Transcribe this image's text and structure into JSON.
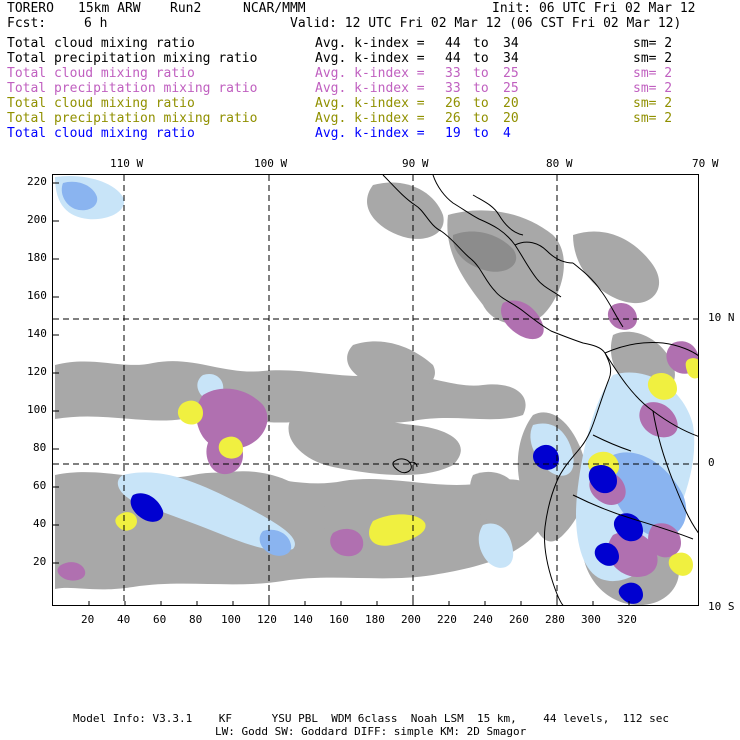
{
  "header": {
    "model": "TORERO",
    "resolution": "15km ARW",
    "run": "Run2",
    "org": "NCAR/MMM",
    "init": "Init: 06 UTC Fri 02 Mar 12",
    "fcst_label": "Fcst:",
    "fcst_value": "6 h",
    "valid": "Valid: 12 UTC Fri 02 Mar 12 (06 CST Fri 02 Mar 12)"
  },
  "legend": [
    {
      "field": "Total cloud mixing ratio",
      "index": "Avg. k-index =",
      "from": "44",
      "to_word": "to",
      "to": "34",
      "sm": "sm= 2",
      "color": "#000000"
    },
    {
      "field": "Total precipitation mixing ratio",
      "index": "Avg. k-index =",
      "from": "44",
      "to_word": "to",
      "to": "34",
      "sm": "sm= 2",
      "color": "#000000"
    },
    {
      "field": "Total cloud mixing ratio",
      "index": "Avg. k-index =",
      "from": "33",
      "to_word": "to",
      "to": "25",
      "sm": "sm= 2",
      "color": "#c060c0"
    },
    {
      "field": "Total precipitation mixing ratio",
      "index": "Avg. k-index =",
      "from": "33",
      "to_word": "to",
      "to": "25",
      "sm": "sm= 2",
      "color": "#c060c0"
    },
    {
      "field": "Total cloud mixing ratio",
      "index": "Avg. k-index =",
      "from": "26",
      "to_word": "to",
      "to": "20",
      "sm": "sm= 2",
      "color": "#909000"
    },
    {
      "field": "Total precipitation mixing ratio",
      "index": "Avg. k-index =",
      "from": "26",
      "to_word": "to",
      "to": "20",
      "sm": "sm= 2",
      "color": "#909000"
    },
    {
      "field": "Total cloud mixing ratio",
      "index": "Avg. k-index =",
      "from": "19",
      "to_word": "to",
      "to": "4",
      "sm": "",
      "color": "#0000ff"
    }
  ],
  "map": {
    "lon_labels": [
      "110 W",
      "100 W",
      "90 W",
      "80 W",
      "70 W"
    ],
    "lat_labels": [
      "10 N",
      "0",
      "10 S"
    ],
    "y_ticks": [
      "220",
      "200",
      "180",
      "160",
      "140",
      "120",
      "100",
      "80",
      "60",
      "40",
      "20"
    ],
    "x_ticks": [
      "20",
      "40",
      "60",
      "80",
      "100",
      "120",
      "140",
      "160",
      "180",
      "200",
      "220",
      "240",
      "260",
      "280",
      "300",
      "320"
    ],
    "colors": {
      "cloud_gray": "#a8a8a8",
      "cloud_dark": "#8c8c8c",
      "precip_purple": "#b070b0",
      "precip_yellow": "#f0f040",
      "light_blue": "#c8e4f8",
      "mid_blue": "#8ab4f0",
      "deep_blue": "#0000d0"
    }
  },
  "footer": {
    "line1": "Model Info: V3.3.1    KF      YSU PBL  WDM 6class  Noah LSM  15 km,    44 levels,  112 sec",
    "line2": "LW: Godd SW: Goddard DIFF: simple KM: 2D Smagor"
  }
}
